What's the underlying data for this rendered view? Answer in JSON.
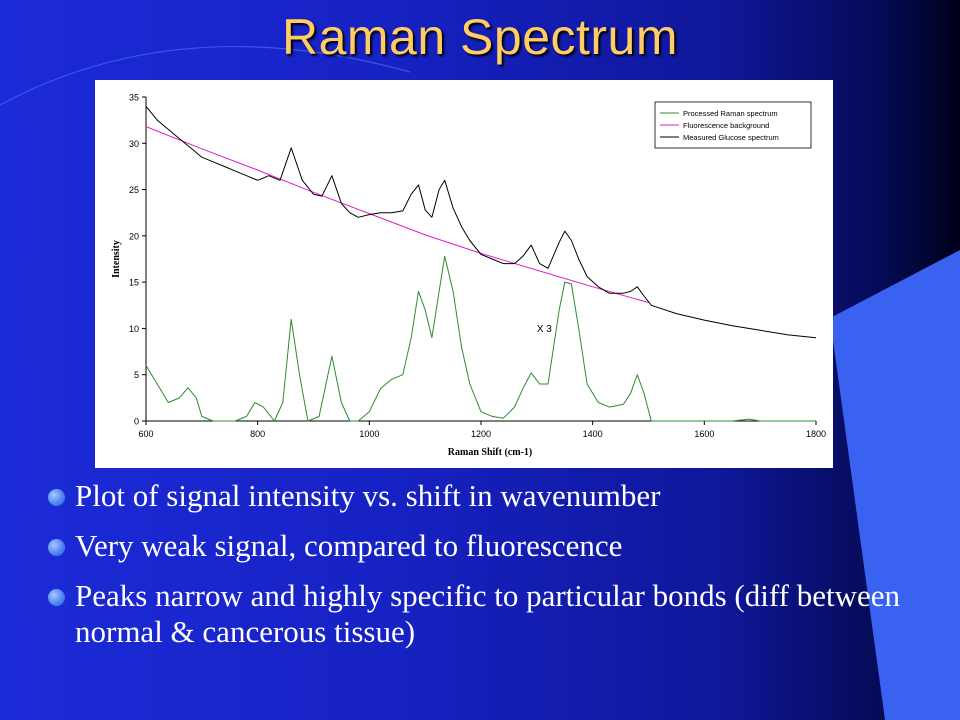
{
  "slide": {
    "title": "Raman Spectrum",
    "bullets": [
      "Plot of signal intensity vs. shift in wavenumber",
      "Very weak signal, compared to fluorescence",
      "Peaks narrow and highly specific to particular bonds (diff between normal & cancerous tissue)"
    ],
    "colors": {
      "title": "#ffcc66",
      "text": "#ffffff",
      "bullet": "#4f86f0"
    }
  },
  "chart_data": {
    "type": "line",
    "title": "",
    "xlabel": "Raman Shift (cm-1)",
    "ylabel": "Intensity",
    "xlim": [
      600,
      1800
    ],
    "ylim": [
      0,
      35
    ],
    "xticks": [
      600,
      800,
      1000,
      1200,
      1400,
      1600,
      1800
    ],
    "yticks": [
      0,
      5,
      10,
      15,
      20,
      25,
      30,
      35
    ],
    "grid": false,
    "legend_position": "top-right",
    "annotation": "X 3",
    "series": [
      {
        "name": "Processed Raman spectrum",
        "color": "#2e8b2e",
        "x": [
          600,
          620,
          640,
          660,
          675,
          690,
          700,
          720,
          740,
          760,
          780,
          795,
          810,
          830,
          845,
          860,
          875,
          890,
          910,
          933,
          950,
          965,
          980,
          1000,
          1020,
          1040,
          1060,
          1075,
          1088,
          1100,
          1112,
          1125,
          1135,
          1150,
          1165,
          1180,
          1200,
          1220,
          1240,
          1260,
          1275,
          1290,
          1305,
          1320,
          1340,
          1350,
          1362,
          1375,
          1390,
          1410,
          1430,
          1455,
          1468,
          1480,
          1492,
          1505,
          1550,
          1600,
          1650,
          1680,
          1700,
          1750,
          1800
        ],
        "y": [
          6,
          4,
          2,
          2.5,
          3.6,
          2.5,
          0.5,
          0,
          0,
          0,
          0.5,
          2,
          1.5,
          0,
          2,
          11,
          5,
          0,
          0.5,
          7,
          2,
          0,
          0,
          1,
          3.5,
          4.5,
          5,
          9,
          14,
          12,
          9,
          14,
          17.8,
          14,
          8,
          4,
          1,
          0.5,
          0.3,
          1.5,
          3.5,
          5.2,
          4,
          4,
          12,
          15,
          14.8,
          10,
          4,
          2,
          1.5,
          1.8,
          3,
          5,
          3,
          0,
          0,
          0,
          0,
          0.2,
          0,
          0,
          0
        ]
      },
      {
        "name": "Fluorescence background",
        "color": "#e020c8",
        "x": [
          600,
          700,
          800,
          900,
          1000,
          1100,
          1200,
          1300,
          1400,
          1500
        ],
        "y": [
          31.8,
          29.4,
          27.1,
          24.7,
          22.4,
          20.1,
          18.1,
          16.3,
          14.5,
          12.8
        ]
      },
      {
        "name": "Measured Glucose spectrum",
        "color": "#000000",
        "x": [
          600,
          620,
          640,
          660,
          680,
          700,
          720,
          740,
          760,
          780,
          800,
          820,
          840,
          860,
          880,
          900,
          915,
          933,
          950,
          965,
          980,
          1000,
          1020,
          1040,
          1060,
          1075,
          1088,
          1100,
          1112,
          1125,
          1135,
          1150,
          1165,
          1180,
          1200,
          1220,
          1240,
          1260,
          1275,
          1290,
          1305,
          1320,
          1340,
          1350,
          1362,
          1375,
          1390,
          1410,
          1430,
          1455,
          1468,
          1480,
          1492,
          1505,
          1550,
          1600,
          1650,
          1700,
          1750,
          1800
        ],
        "y": [
          34,
          32.5,
          31.5,
          30.5,
          29.5,
          28.5,
          28,
          27.5,
          27,
          26.5,
          26,
          26.5,
          26,
          29.5,
          26,
          24.5,
          24.3,
          26.5,
          23.5,
          22.5,
          22,
          22.3,
          22.5,
          22.5,
          22.7,
          24.5,
          25.5,
          22.8,
          22,
          25,
          26,
          23,
          21,
          19.5,
          18,
          17.5,
          17,
          17,
          17.8,
          19,
          17,
          16.5,
          19.3,
          20.5,
          19.5,
          17.5,
          15.6,
          14.5,
          13.8,
          13.8,
          14,
          14.5,
          13.5,
          12.5,
          11.6,
          10.9,
          10.3,
          9.8,
          9.3,
          9
        ]
      }
    ]
  }
}
